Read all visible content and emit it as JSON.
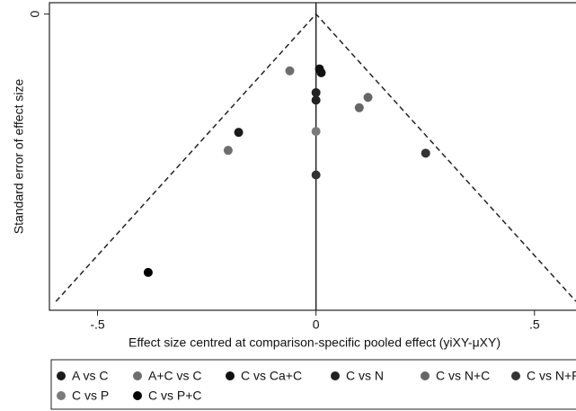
{
  "chart_data": {
    "type": "scatter",
    "x_label": "Effect size centred at comparison-specific pooled effect (yiXY-μXY)",
    "y_label": "Standard error of effect size",
    "xlim": [
      -0.61,
      0.595
    ],
    "ylim": [
      -0.012,
      0.313
    ],
    "y_inverted": true,
    "xticks": [
      {
        "value": -0.5,
        "label": "-.5"
      },
      0,
      {
        "value": 0.5,
        "label": ".5"
      }
    ],
    "yticks": [
      0
    ],
    "funnel": {
      "x": [
        -0.595,
        0,
        0.595
      ],
      "y": [
        0.3036,
        0,
        0.3036
      ]
    },
    "series": [
      {
        "name": "A vs C",
        "color": "#1a1a1a",
        "x": [
          -0.177
        ],
        "values": [
          0.125
        ]
      },
      {
        "name": "A+C vs C",
        "color": "#6e6e6e",
        "x": [
          -0.201,
          -0.06
        ],
        "values": [
          0.144,
          0.06
        ]
      },
      {
        "name": "C vs Ca+C",
        "color": "#111111",
        "x": [
          0.008,
          0.012
        ],
        "values": [
          0.058,
          0.062
        ]
      },
      {
        "name": "C vs N",
        "color": "#222222",
        "x": [
          0,
          0
        ],
        "values": [
          0.083,
          0.091
        ]
      },
      {
        "name": "C vs N+C",
        "color": "#666666",
        "x": [
          0.119,
          0.099
        ],
        "values": [
          0.088,
          0.099
        ]
      },
      {
        "name": "C vs N+P",
        "color": "#333333",
        "x": [
          0.251,
          0
        ],
        "values": [
          0.147,
          0.17
        ]
      },
      {
        "name": "C vs P",
        "color": "#7a7a7a",
        "x": [
          0
        ],
        "values": [
          0.124
        ]
      },
      {
        "name": "C vs P+C",
        "color": "#000000",
        "x": [
          -0.384
        ],
        "values": [
          0.273
        ]
      }
    ]
  }
}
